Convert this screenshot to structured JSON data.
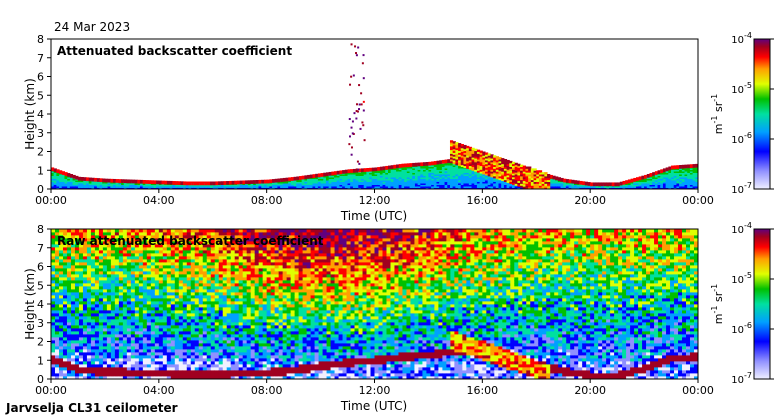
{
  "date": "24 Mar 2023",
  "footer": "Jarvselja CL31 ceilometer",
  "colors": {
    "cmap": [
      "#ffffff",
      "#c8c8ff",
      "#0000ff",
      "#00b4ff",
      "#00ffb4",
      "#00d000",
      "#ffff00",
      "#ff8c00",
      "#ff0000",
      "#a00000",
      "#600080"
    ]
  },
  "chart_data": [
    {
      "type": "heatmap",
      "title": "Attenuated backscatter coefficient",
      "xlabel": "Time (UTC)",
      "ylabel": "Height (km)",
      "xlim": [
        0,
        24
      ],
      "ylim": [
        0,
        8
      ],
      "x_ticks": [
        "00:00",
        "04:00",
        "08:00",
        "12:00",
        "16:00",
        "20:00",
        "00:00"
      ],
      "y_ticks": [
        "0",
        "1",
        "2",
        "3",
        "4",
        "5",
        "6",
        "7",
        "8"
      ],
      "colorbar": {
        "scale": "log",
        "range": [
          1e-07,
          0.0001
        ],
        "tick_labels": [
          "10",
          "10",
          "10",
          "10"
        ],
        "tick_exponents": [
          "-7",
          "-6",
          "-5",
          "-4"
        ],
        "unit_m": "m",
        "unit_m_exp": "-1",
        "unit_sr": "sr",
        "unit_sr_exp": "-1"
      },
      "cloud_layer_km": [
        [
          0,
          1.0
        ],
        [
          1,
          0.5
        ],
        [
          2,
          0.4
        ],
        [
          3,
          0.35
        ],
        [
          4,
          0.3
        ],
        [
          5,
          0.25
        ],
        [
          6,
          0.25
        ],
        [
          7,
          0.3
        ],
        [
          8,
          0.35
        ],
        [
          9,
          0.5
        ],
        [
          10,
          0.7
        ],
        [
          11,
          0.9
        ],
        [
          12,
          1.0
        ],
        [
          13,
          1.2
        ],
        [
          14,
          1.3
        ],
        [
          15,
          1.5
        ],
        [
          16,
          1.7
        ],
        [
          16.5,
          1.3
        ],
        [
          17,
          0.9
        ],
        [
          18,
          0.8
        ],
        [
          19,
          0.4
        ],
        [
          20,
          0.2
        ],
        [
          21,
          0.2
        ],
        [
          22,
          0.6
        ],
        [
          23,
          1.1
        ],
        [
          24,
          1.2
        ]
      ]
    },
    {
      "type": "heatmap",
      "title": "Raw attenuated backscatter coefficient",
      "xlabel": "Time (UTC)",
      "ylabel": "Height (km)",
      "xlim": [
        0,
        24
      ],
      "ylim": [
        0,
        8
      ],
      "x_ticks": [
        "00:00",
        "04:00",
        "08:00",
        "12:00",
        "16:00",
        "20:00",
        "00:00"
      ],
      "y_ticks": [
        "0",
        "1",
        "2",
        "3",
        "4",
        "5",
        "6",
        "7",
        "8"
      ],
      "colorbar": {
        "scale": "log",
        "range": [
          1e-07,
          0.0001
        ],
        "tick_labels": [
          "10",
          "10",
          "10",
          "10"
        ],
        "tick_exponents": [
          "-7",
          "-6",
          "-5",
          "-4"
        ],
        "unit_m": "m",
        "unit_m_exp": "-1",
        "unit_sr": "sr",
        "unit_sr_exp": "-1"
      }
    }
  ]
}
